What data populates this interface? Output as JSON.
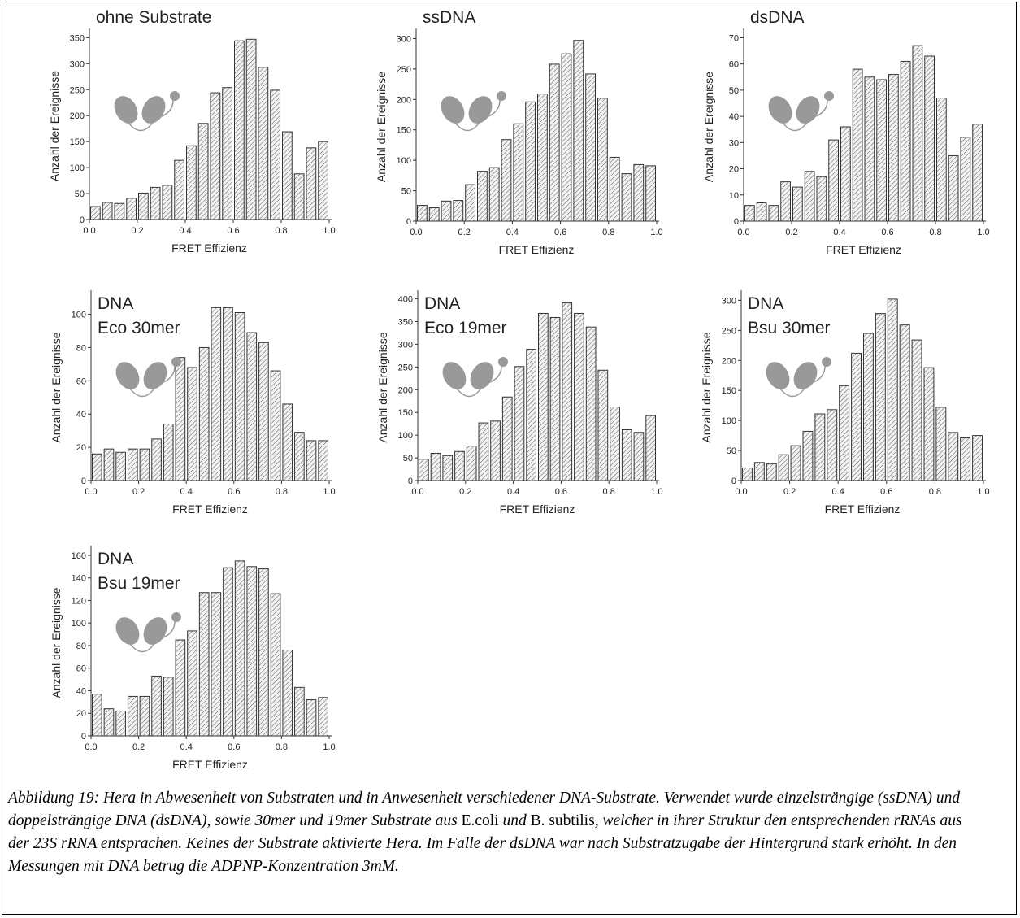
{
  "chart_data": [
    {
      "type": "histogram",
      "title": [
        "ohne Substrate"
      ],
      "xlabel": "FRET Effizienz",
      "ylabel": "Anzahl der Ereignisse",
      "bins": [
        0,
        0.05,
        0.1,
        0.15,
        0.2,
        0.25,
        0.3,
        0.35,
        0.4,
        0.45,
        0.5,
        0.55,
        0.6,
        0.65,
        0.7,
        0.75,
        0.8,
        0.85,
        0.9,
        0.95,
        1.0
      ],
      "values": [
        25,
        33,
        31,
        41,
        51,
        62,
        66,
        114,
        142,
        185,
        244,
        254,
        344,
        347,
        293,
        249,
        169,
        88,
        138,
        150
      ],
      "xlim": [
        0,
        1
      ],
      "ylim": [
        0,
        360
      ],
      "xticks": [
        {
          "value": 0,
          "label": "0.0"
        },
        0.2,
        0.4,
        0.6,
        0.8,
        {
          "value": 1,
          "label": "1.0"
        }
      ],
      "yticks": [
        0,
        50,
        100,
        150,
        200,
        250,
        300,
        350
      ]
    },
    {
      "type": "histogram",
      "title": [
        "ssDNA"
      ],
      "xlabel": "FRET Effizienz",
      "ylabel": "Anzahl der Ereignisse",
      "bins": [
        0,
        0.05,
        0.1,
        0.15,
        0.2,
        0.25,
        0.3,
        0.35,
        0.4,
        0.45,
        0.5,
        0.55,
        0.6,
        0.65,
        0.7,
        0.75,
        0.8,
        0.85,
        0.9,
        0.95,
        1.0
      ],
      "values": [
        26,
        22,
        33,
        34,
        60,
        82,
        88,
        134,
        160,
        196,
        209,
        258,
        275,
        297,
        242,
        202,
        105,
        78,
        93,
        91
      ],
      "xlim": [
        0,
        1
      ],
      "ylim": [
        0,
        310
      ],
      "xticks": [
        {
          "value": 0,
          "label": "0.0"
        },
        0.2,
        0.4,
        0.6,
        0.8,
        {
          "value": 1,
          "label": "1.0"
        }
      ],
      "yticks": [
        0,
        50,
        100,
        150,
        200,
        250,
        300
      ]
    },
    {
      "type": "histogram",
      "title": [
        "dsDNA"
      ],
      "xlabel": "FRET Effizienz",
      "ylabel": "Anzahl der Ereignisse",
      "bins": [
        0,
        0.05,
        0.1,
        0.15,
        0.2,
        0.25,
        0.3,
        0.35,
        0.4,
        0.45,
        0.5,
        0.55,
        0.6,
        0.65,
        0.7,
        0.75,
        0.8,
        0.85,
        0.9,
        0.95,
        1.0
      ],
      "values": [
        6,
        7,
        6,
        15,
        13,
        19,
        17,
        31,
        36,
        58,
        55,
        54,
        56,
        61,
        67,
        63,
        47,
        25,
        32,
        37
      ],
      "xlim": [
        0,
        1
      ],
      "ylim": [
        0,
        72
      ],
      "xticks": [
        {
          "value": 0,
          "label": "0.0"
        },
        0.2,
        0.4,
        0.6,
        0.8,
        {
          "value": 1,
          "label": "1.0"
        }
      ],
      "yticks": [
        0,
        10,
        20,
        30,
        40,
        50,
        60,
        70
      ]
    },
    {
      "type": "histogram",
      "title": [
        "DNA",
        "Eco 30mer"
      ],
      "xlabel": "FRET Effizienz",
      "ylabel": "Anzahl der Ereignisse",
      "bins": [
        0,
        0.05,
        0.1,
        0.15,
        0.2,
        0.25,
        0.3,
        0.35,
        0.4,
        0.45,
        0.5,
        0.55,
        0.6,
        0.65,
        0.7,
        0.75,
        0.8,
        0.85,
        0.9,
        0.95,
        1.0
      ],
      "values": [
        16,
        19,
        17,
        19,
        19,
        25,
        34,
        74,
        68,
        80,
        104,
        104,
        101,
        89,
        83,
        66,
        46,
        29,
        24,
        24
      ],
      "xlim": [
        0,
        1
      ],
      "ylim": [
        0,
        112
      ],
      "xticks": [
        {
          "value": 0,
          "label": "0.0"
        },
        0.2,
        0.4,
        0.6,
        0.8,
        {
          "value": 1,
          "label": "1.0"
        }
      ],
      "yticks": [
        0,
        20,
        40,
        60,
        80,
        100
      ]
    },
    {
      "type": "histogram",
      "title": [
        "DNA",
        "Eco 19mer"
      ],
      "xlabel": "FRET Effizienz",
      "ylabel": "Anzahl der Ereignisse",
      "bins": [
        0,
        0.05,
        0.1,
        0.15,
        0.2,
        0.25,
        0.3,
        0.35,
        0.4,
        0.45,
        0.5,
        0.55,
        0.6,
        0.65,
        0.7,
        0.75,
        0.8,
        0.85,
        0.9,
        0.95,
        1.0
      ],
      "values": [
        47,
        60,
        55,
        64,
        76,
        127,
        131,
        184,
        251,
        289,
        368,
        359,
        391,
        368,
        338,
        243,
        162,
        112,
        106,
        143
      ],
      "xlim": [
        0,
        1
      ],
      "ylim": [
        0,
        410
      ],
      "xticks": [
        {
          "value": 0,
          "label": "0.0"
        },
        0.2,
        0.4,
        0.6,
        0.8,
        {
          "value": 1,
          "label": "1.0"
        }
      ],
      "yticks": [
        0,
        50,
        100,
        150,
        200,
        250,
        300,
        350,
        400
      ]
    },
    {
      "type": "histogram",
      "title": [
        "DNA",
        "Bsu 30mer"
      ],
      "xlabel": "FRET Effizienz",
      "ylabel": "Anzahl der Ereignisse",
      "bins": [
        0,
        0.05,
        0.1,
        0.15,
        0.2,
        0.25,
        0.3,
        0.35,
        0.4,
        0.45,
        0.5,
        0.55,
        0.6,
        0.65,
        0.7,
        0.75,
        0.8,
        0.85,
        0.9,
        0.95,
        1.0
      ],
      "values": [
        21,
        30,
        28,
        43,
        58,
        82,
        111,
        118,
        158,
        212,
        245,
        278,
        302,
        259,
        234,
        188,
        122,
        80,
        71,
        75
      ],
      "xlim": [
        0,
        1
      ],
      "ylim": [
        0,
        310
      ],
      "xticks": [
        {
          "value": 0,
          "label": "0.0"
        },
        0.2,
        0.4,
        0.6,
        0.8,
        {
          "value": 1,
          "label": "1.0"
        }
      ],
      "yticks": [
        0,
        50,
        100,
        150,
        200,
        250,
        300
      ]
    },
    {
      "type": "histogram",
      "title": [
        "DNA",
        "Bsu 19mer"
      ],
      "xlabel": "FRET Effizienz",
      "ylabel": "Anzahl der Ereignisse",
      "bins": [
        0,
        0.05,
        0.1,
        0.15,
        0.2,
        0.25,
        0.3,
        0.35,
        0.4,
        0.45,
        0.5,
        0.55,
        0.6,
        0.65,
        0.7,
        0.75,
        0.8,
        0.85,
        0.9,
        0.95,
        1.0
      ],
      "values": [
        37,
        24,
        22,
        35,
        35,
        53,
        52,
        85,
        93,
        127,
        127,
        149,
        155,
        150,
        148,
        126,
        76,
        43,
        32,
        34
      ],
      "xlim": [
        0,
        1
      ],
      "ylim": [
        0,
        165
      ],
      "xticks": [
        {
          "value": 0,
          "label": "0.0"
        },
        0.2,
        0.4,
        0.6,
        0.8,
        {
          "value": 1,
          "label": "1.0"
        }
      ],
      "yticks": [
        0,
        20,
        40,
        60,
        80,
        100,
        120,
        140,
        160
      ]
    }
  ],
  "caption": [
    {
      "text": "Abbildung 19: Hera in Abwesenheit von Substraten und in Anwesenheit verschiedener DNA-Substrate. Verwendet wurde einzelsträngige (ssDNA)  und doppelsträngige DNA (dsDNA), sowie 30mer und 19mer Substrate aus ",
      "italic": true
    },
    {
      "text": "E.coli",
      "italic": false
    },
    {
      "text": " und ",
      "italic": true
    },
    {
      "text": "B. subtilis",
      "italic": false
    },
    {
      "text": ", welcher in ihrer Struktur den entsprechenden rRNAs aus der 23S rRNA entsprachen. Keines der Substrate aktivierte Hera. Im Falle der dsDNA war nach Substratzugabe der Hintergrund stark erhöht. In den Messungen mit DNA betrug die ADPNP-Konzentration 3mM.",
      "italic": true
    }
  ]
}
